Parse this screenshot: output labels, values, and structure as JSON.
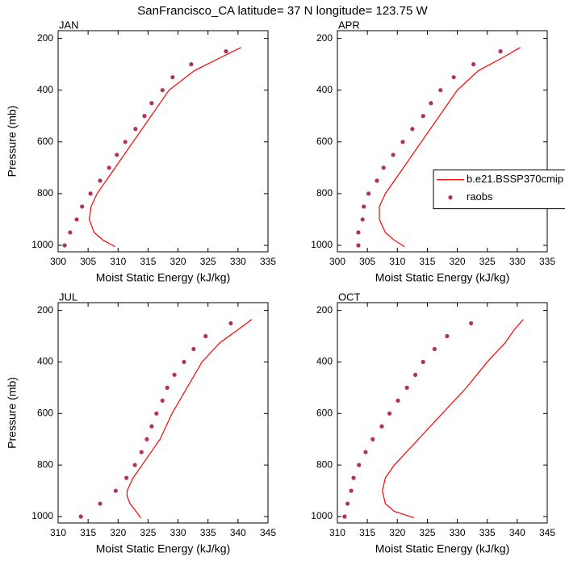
{
  "title": "SanFrancisco_CA  latitude= 37 N longitude= 123.75 W",
  "chart_data": [
    {
      "type": "line",
      "panel_label": "JAN",
      "xlabel": "Moist Static Energy (kJ/kg)",
      "ylabel": "Pressure (mb)",
      "xlim": [
        300,
        335
      ],
      "xticks": [
        300,
        305,
        310,
        315,
        320,
        325,
        330,
        335
      ],
      "ylim": [
        1025,
        170
      ],
      "yticks": [
        200,
        400,
        600,
        800,
        1000
      ],
      "series": [
        {
          "name": "b.e21.BSSP370cmip",
          "style": "line",
          "color": "#ff0000",
          "x": [
            309.5,
            307.5,
            306,
            305.2,
            305.5,
            306.5,
            308,
            309.5,
            312.5,
            315.5,
            318.5,
            322.7,
            327,
            330.5
          ],
          "y": [
            1005,
            980,
            950,
            900,
            850,
            800,
            750,
            700,
            600,
            500,
            400,
            325,
            275,
            235
          ]
        },
        {
          "name": "raobs",
          "style": "marker",
          "color": "#b03060",
          "x": [
            301.1,
            302.0,
            303.1,
            304.0,
            305.4,
            307.0,
            308.5,
            309.8,
            311.2,
            312.9,
            314.4,
            315.6,
            317.4,
            319.1,
            322.2,
            328.0
          ],
          "y": [
            1000,
            950,
            900,
            850,
            800,
            750,
            700,
            650,
            600,
            550,
            500,
            450,
            400,
            350,
            300,
            250
          ]
        }
      ]
    },
    {
      "type": "line",
      "panel_label": "APR",
      "xlabel": "Moist Static Energy (kJ/kg)",
      "xlim": [
        300,
        335
      ],
      "xticks": [
        300,
        305,
        310,
        315,
        320,
        325,
        330,
        335
      ],
      "ylim": [
        1025,
        170
      ],
      "yticks": [
        200,
        400,
        600,
        800,
        1000
      ],
      "legend": "right",
      "series": [
        {
          "name": "b.e21.BSSP370cmip",
          "style": "line",
          "color": "#ff0000",
          "x": [
            311.2,
            309.5,
            308,
            307,
            307,
            308,
            309.5,
            311,
            314,
            317,
            320,
            323.5,
            327.5,
            330.5
          ],
          "y": [
            1005,
            980,
            950,
            900,
            850,
            800,
            750,
            700,
            600,
            500,
            400,
            325,
            275,
            235
          ]
        },
        {
          "name": "raobs",
          "style": "marker",
          "color": "#b03060",
          "x": [
            303.5,
            303.5,
            304.2,
            304.4,
            305.2,
            306.6,
            307.7,
            309.3,
            310.9,
            312.5,
            314.3,
            315.6,
            317.2,
            319.4,
            322.7,
            327.2
          ],
          "y": [
            1000,
            950,
            900,
            850,
            800,
            750,
            700,
            650,
            600,
            550,
            500,
            450,
            400,
            350,
            300,
            250
          ]
        }
      ]
    },
    {
      "type": "line",
      "panel_label": "JUL",
      "xlabel": "Moist Static Energy (kJ/kg)",
      "ylabel": "Pressure (mb)",
      "xlim": [
        310,
        345
      ],
      "xticks": [
        310,
        315,
        320,
        325,
        330,
        335,
        340,
        345
      ],
      "ylim": [
        1025,
        170
      ],
      "yticks": [
        200,
        400,
        600,
        800,
        1000
      ],
      "series": [
        {
          "name": "b.e21.BSSP370cmip",
          "style": "line",
          "color": "#ff0000",
          "x": [
            323.8,
            323,
            322,
            321.5,
            321.5,
            322.5,
            324,
            325.5,
            327,
            329,
            331.5,
            334,
            337,
            340,
            342.3
          ],
          "y": [
            1005,
            980,
            950,
            920,
            900,
            850,
            800,
            750,
            700,
            600,
            500,
            400,
            325,
            275,
            235
          ]
        },
        {
          "name": "raobs",
          "style": "marker",
          "color": "#b03060",
          "x": [
            313.8,
            317.0,
            319.6,
            321.4,
            322.8,
            323.9,
            324.8,
            325.6,
            326.4,
            327.4,
            328.2,
            329.4,
            331.0,
            332.6,
            334.6,
            338.8
          ],
          "y": [
            1000,
            950,
            900,
            850,
            800,
            750,
            700,
            650,
            600,
            550,
            500,
            450,
            400,
            350,
            300,
            250
          ]
        }
      ]
    },
    {
      "type": "line",
      "panel_label": "OCT",
      "xlabel": "Moist Static Energy (kJ/kg)",
      "xlim": [
        310,
        345
      ],
      "xticks": [
        310,
        315,
        320,
        325,
        330,
        335,
        340,
        345
      ],
      "ylim": [
        1025,
        170
      ],
      "yticks": [
        200,
        400,
        600,
        800,
        1000
      ],
      "series": [
        {
          "name": "b.e21.BSSP370cmip",
          "style": "line",
          "color": "#ff0000",
          "x": [
            322.8,
            319.5,
            318,
            317.5,
            318,
            319.5,
            321.5,
            323.5,
            327.5,
            331.5,
            335,
            338,
            339.5,
            341
          ],
          "y": [
            1005,
            980,
            950,
            900,
            850,
            800,
            750,
            700,
            600,
            500,
            400,
            325,
            275,
            235
          ]
        },
        {
          "name": "raobs",
          "style": "marker",
          "color": "#b03060",
          "x": [
            311.2,
            311.7,
            312.3,
            312.7,
            313.6,
            314.7,
            315.9,
            317.4,
            318.7,
            320.1,
            321.6,
            323.0,
            324.3,
            326.2,
            328.3,
            332.3
          ],
          "y": [
            1000,
            950,
            900,
            850,
            800,
            750,
            700,
            650,
            600,
            550,
            500,
            450,
            400,
            350,
            300,
            250
          ]
        }
      ]
    }
  ]
}
